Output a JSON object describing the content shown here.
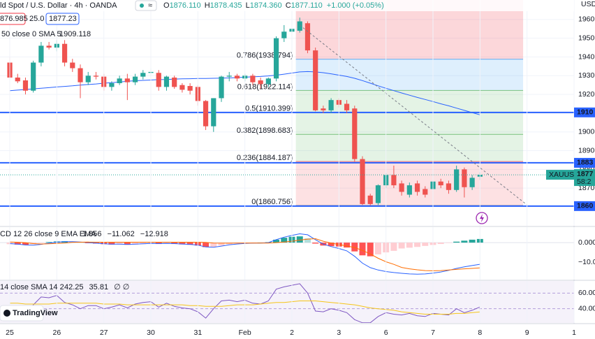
{
  "chart_data": [
    {
      "type": "candlestick",
      "title": "ld Spot / U.S. Dollar · 4h · OANDA",
      "ohlc_legend": [
        {
          "key": "O",
          "value": "1876.110"
        },
        {
          "key": "H",
          "value": "1878.435"
        },
        {
          "key": "L",
          "value": "1874.360"
        },
        {
          "key": "C",
          "value": "1877.110"
        }
      ],
      "change": "+1.000 (+0.05%)",
      "boxes": [
        "876.985",
        "25.0",
        "1877.23"
      ],
      "y_axis_label": "USD",
      "x": [
        0,
        1,
        2,
        3,
        4,
        5,
        6,
        7,
        8,
        9,
        10,
        11,
        12,
        13,
        14,
        15,
        16,
        17,
        18,
        19,
        20,
        21,
        22,
        23,
        24,
        25,
        26,
        27,
        28,
        29,
        30,
        31,
        32,
        33,
        34,
        35,
        36,
        37,
        38,
        39,
        40,
        41,
        42,
        43,
        44,
        45,
        46,
        47,
        48,
        49,
        50,
        51,
        52,
        53,
        54,
        55,
        56,
        57,
        58,
        59,
        60
      ],
      "open": [
        1937,
        1929,
        1927.5,
        1922,
        1937,
        1946,
        1945,
        1947,
        1937,
        1934,
        1926.5,
        1930,
        1929.5,
        1924,
        1926,
        1928.5,
        1926.5,
        1929.5,
        1931.5,
        1931.5,
        1924,
        1929,
        1925,
        1924.5,
        1924,
        1916.5,
        1903,
        1918,
        1929.5,
        1930,
        1928.5,
        1930,
        1927.5,
        1925.5,
        1928.5,
        1950,
        1953.5,
        1954,
        1958,
        1943.5,
        1912.5,
        1911.5,
        1917,
        1915,
        1912.5,
        1885.5,
        1866,
        1862,
        1871.5,
        1877,
        1872.5,
        1866.5,
        1872.5,
        1869.5,
        1869.5,
        1873.5,
        1872.5,
        1869,
        1880,
        1870.5,
        1876.11
      ],
      "high": [
        1940,
        1931,
        1929,
        1938,
        1948,
        1948,
        1949,
        1949,
        1939,
        1936,
        1932,
        1932,
        1931,
        1927,
        1930,
        1931,
        1931,
        1933,
        1934,
        1933,
        1930,
        1930,
        1926,
        1926,
        1925,
        1917,
        1918,
        1930,
        1932,
        1931,
        1931,
        1931,
        1929,
        1929,
        1951,
        1957,
        1956,
        1961,
        1959,
        1945,
        1914,
        1918,
        1918,
        1917,
        1914,
        1887,
        1867,
        1872,
        1878,
        1882,
        1874,
        1873,
        1874,
        1871,
        1875,
        1875,
        1874,
        1882,
        1881,
        1877,
        1878.435
      ],
      "low": [
        1928,
        1926,
        1920,
        1921,
        1935,
        1944,
        1943,
        1935,
        1932,
        1918,
        1925,
        1928,
        1922,
        1922,
        1925,
        1917,
        1925,
        1928,
        1930,
        1922,
        1922,
        1923,
        1921,
        1920,
        1914,
        1901,
        1900,
        1916,
        1927,
        1927,
        1927,
        1925,
        1923,
        1924,
        1927,
        1948,
        1951,
        1953,
        1942,
        1911,
        1910,
        1910,
        1913,
        1910,
        1884,
        1861,
        1860.756,
        1861,
        1870,
        1870,
        1866,
        1865,
        1866,
        1865,
        1868,
        1870,
        1867,
        1868,
        1865,
        1869,
        1874.36
      ],
      "close": [
        1929,
        1927,
        1922,
        1937,
        1946,
        1945,
        1947,
        1937,
        1934,
        1926.5,
        1930,
        1929.5,
        1924,
        1926,
        1928.5,
        1926.5,
        1929.5,
        1931.5,
        1932,
        1924,
        1929.5,
        1924,
        1922.5,
        1922,
        1916.5,
        1903,
        1918,
        1929.5,
        1930,
        1928.5,
        1930,
        1926.5,
        1925.5,
        1928.5,
        1950,
        1953.5,
        1955,
        1959,
        1943.5,
        1911.5,
        1911.5,
        1917,
        1914.5,
        1911.5,
        1885.5,
        1861.5,
        1861.5,
        1871.5,
        1877,
        1871.5,
        1868,
        1871.5,
        1868,
        1866.5,
        1873.5,
        1871.5,
        1869,
        1880,
        1870.5,
        1875.5,
        1877.11
      ],
      "up_color": "#26a69a",
      "down_color": "#ef5350",
      "xlim": [
        -1.25,
        72
      ],
      "xticks": [
        {
          "value": 0,
          "label": "25"
        },
        {
          "value": 6,
          "label": "26"
        },
        {
          "value": 12,
          "label": "27"
        },
        {
          "value": 18,
          "label": "30"
        },
        {
          "value": 24,
          "label": "31"
        },
        {
          "value": 30,
          "label": "Feb"
        },
        {
          "value": 36,
          "label": "2"
        },
        {
          "value": 42,
          "label": "3"
        },
        {
          "value": 48,
          "label": "6"
        },
        {
          "value": 54,
          "label": "7"
        },
        {
          "value": 60,
          "label": "8"
        },
        {
          "value": 66,
          "label": "9"
        },
        {
          "value": 72,
          "label": "1"
        }
      ],
      "ylim": [
        1849.9,
        1970.4
      ],
      "yticks": [
        1870,
        1880,
        1890,
        1900,
        1910,
        1920,
        1930,
        1940,
        1950,
        1960
      ],
      "grid": true,
      "sma": {
        "name": "50 close 0 SMA 5",
        "value_label": "1909.118",
        "color": "#2962ff",
        "values": [
          1922,
          1922.3,
          1922.6,
          1923,
          1923.3,
          1923.6,
          1924,
          1924.3,
          1924.6,
          1925,
          1925.3,
          1925.6,
          1926,
          1926.3,
          1926.6,
          1927,
          1927.3,
          1927.5,
          1927.7,
          1927.9,
          1928,
          1928.2,
          1928.3,
          1928.4,
          1928.5,
          1928.5,
          1928.6,
          1928.7,
          1928.8,
          1929,
          1929.2,
          1929.4,
          1929.6,
          1929.9,
          1930.3,
          1930.8,
          1931.4,
          1932,
          1932.2,
          1932,
          1931.6,
          1931,
          1930.3,
          1929.6,
          1928.6,
          1927.4,
          1926,
          1924.6,
          1923.3,
          1922,
          1920.8,
          1919.6,
          1918.4,
          1917.3,
          1916.2,
          1915,
          1913.9,
          1912.7,
          1911.5,
          1910.3,
          1909.118
        ]
      },
      "hlines": [
        {
          "value": 1910.4,
          "label": "1910"
        },
        {
          "value": 1883.5,
          "label": "1883"
        },
        {
          "value": 1860.4,
          "label": "1860"
        }
      ],
      "hline_color": "#2962ff",
      "fib": {
        "x": [
          36.5,
          65.5
        ],
        "top_color": "#f23645",
        "levels": [
          {
            "value": 1938.794,
            "label": "0.786(1938.794)",
            "color": "#2196f3"
          },
          {
            "value": 1922.114,
            "label": "0.618(1922.114)",
            "color": "#4caf50"
          },
          {
            "value": 1910.399,
            "label": "0.5(1910.399)",
            "color": "#4caf50"
          },
          {
            "value": 1898.683,
            "label": "0.382(1898.683)",
            "color": "#4caf50"
          },
          {
            "value": 1884.187,
            "label": "0.236(1884.187)",
            "color": "#f23645"
          },
          {
            "value": 1860.756,
            "label": "0(1860.756)",
            "color": "#787b86"
          }
        ]
      },
      "trend_line": {
        "x": [
          37,
          66
        ],
        "y": [
          1957,
          1861
        ]
      },
      "price_tag": {
        "name": "XAUUSD",
        "label": "1877",
        "countdown": "58:2",
        "color": "#26a69a"
      },
      "logo": "TradingView"
    },
    {
      "type": "macd",
      "title": "CD 12 26 close 9 EMA EMA",
      "ylim": [
        -18.9,
        7.9
      ],
      "yticks": [
        {
          "value": 0,
          "label": "0.000"
        },
        {
          "value": -10,
          "label": "−10.000"
        }
      ],
      "hist_colors": [
        "#26a69a",
        "#b2dfdb",
        "#ff5252",
        "#ffcdd2"
      ],
      "series": [
        {
          "kind": "histogram",
          "value_label": "1.856",
          "color": "#26a69a",
          "values": [
            -0.8,
            -1.0,
            -1.2,
            -0.8,
            -0.2,
            0.3,
            0.6,
            0.7,
            0.4,
            0.1,
            -0.3,
            -0.5,
            -0.8,
            -1.0,
            -1.0,
            -1.1,
            -1.0,
            -0.8,
            -0.6,
            -0.7,
            -0.6,
            -0.7,
            -0.9,
            -1.1,
            -1.5,
            -2.3,
            -2.2,
            -1.5,
            -0.8,
            -0.5,
            -0.2,
            -0.1,
            0.0,
            0.2,
            1.5,
            2.5,
            3.0,
            3.2,
            2.2,
            -0.5,
            -1.5,
            -1.8,
            -2.0,
            -2.5,
            -4.5,
            -6.5,
            -7.0,
            -6.0,
            -5.0,
            -4.2,
            -3.0,
            -2.6,
            -2.2,
            -1.7,
            -1.2,
            -0.7,
            -0.2,
            0.5,
            1.0,
            1.5,
            1.856
          ]
        },
        {
          "kind": "line",
          "value_label": "−11.062",
          "color": "#2962ff",
          "values": [
            -0.5,
            -0.8,
            -1.2,
            -1.3,
            -0.9,
            -0.3,
            0.2,
            0.5,
            0.5,
            0.3,
            0,
            -0.3,
            -0.6,
            -0.8,
            -0.8,
            -0.9,
            -0.8,
            -0.6,
            -0.4,
            -0.5,
            -0.4,
            -0.5,
            -0.7,
            -0.9,
            -1.3,
            -2.2,
            -2.4,
            -1.8,
            -1.1,
            -0.7,
            -0.4,
            -0.3,
            -0.2,
            0,
            1.5,
            2.8,
            3.7,
            4.5,
            4.0,
            1.5,
            -0.8,
            -2.0,
            -3.0,
            -4.2,
            -7.0,
            -10.5,
            -12.8,
            -14.0,
            -14.8,
            -15.3,
            -15.7,
            -16.0,
            -16.1,
            -16.0,
            -15.6,
            -15.0,
            -14.2,
            -13.2,
            -12.4,
            -11.7,
            -11.062
          ]
        },
        {
          "kind": "line",
          "value_label": "−12.918",
          "color": "#ff6d00",
          "values": [
            0.3,
            0.2,
            0,
            -0.5,
            -0.7,
            -0.6,
            -0.4,
            -0.2,
            0.1,
            0.2,
            0.3,
            0.2,
            0.2,
            0.2,
            0.2,
            0.2,
            0.2,
            0.2,
            0.2,
            0.2,
            0.2,
            0.2,
            0.2,
            0.2,
            0.2,
            0.1,
            -0.2,
            -0.3,
            -0.3,
            -0.2,
            -0.2,
            -0.2,
            -0.2,
            -0.2,
            0,
            0.3,
            0.7,
            1.3,
            1.8,
            2.0,
            0.7,
            -0.2,
            -1.0,
            -1.7,
            -2.5,
            -4.0,
            -5.8,
            -8.0,
            -9.8,
            -11.1,
            -12.7,
            -13.4,
            -13.9,
            -14.3,
            -14.4,
            -14.3,
            -14.0,
            -13.7,
            -13.4,
            -13.2,
            -12.918
          ]
        }
      ]
    },
    {
      "type": "rsi",
      "title": "14 close SMA 14 2",
      "extra_label": "∅ ∅",
      "ylim": [
        21.8,
        75.5
      ],
      "yticks": [
        {
          "value": 60,
          "label": "60.00"
        },
        {
          "value": 40,
          "label": "40.00"
        }
      ],
      "series": [
        {
          "value_label": "42.25",
          "color": "#7e57c2",
          "values": [
            40,
            38,
            35,
            45,
            55,
            54,
            57,
            48,
            45,
            40,
            44,
            44,
            40,
            42,
            45,
            41,
            46,
            48,
            49,
            42,
            47,
            43,
            41,
            40,
            36,
            28,
            40,
            50,
            51,
            49,
            51,
            47,
            46,
            50,
            65,
            68,
            70,
            72,
            60,
            37,
            36,
            40,
            38,
            35,
            26,
            22,
            22,
            30,
            35,
            33,
            32,
            34,
            31,
            30,
            34,
            33,
            32,
            40,
            35,
            38,
            42.25
          ]
        },
        {
          "value_label": "35.81",
          "color": "#f5c518",
          "values": [
            47,
            47,
            46,
            46,
            46,
            46,
            47,
            47,
            47,
            47,
            47,
            47,
            46,
            46,
            46,
            45,
            45,
            45,
            45,
            45,
            45,
            45,
            45,
            44,
            44,
            43,
            43,
            43,
            44,
            45,
            45,
            45,
            46,
            47,
            48,
            48,
            49,
            50,
            50,
            50,
            49,
            48,
            47,
            46,
            45,
            43,
            41,
            40,
            39,
            38,
            36,
            35,
            34,
            33,
            33,
            33,
            33,
            34,
            34,
            35,
            35.81
          ]
        }
      ]
    }
  ]
}
